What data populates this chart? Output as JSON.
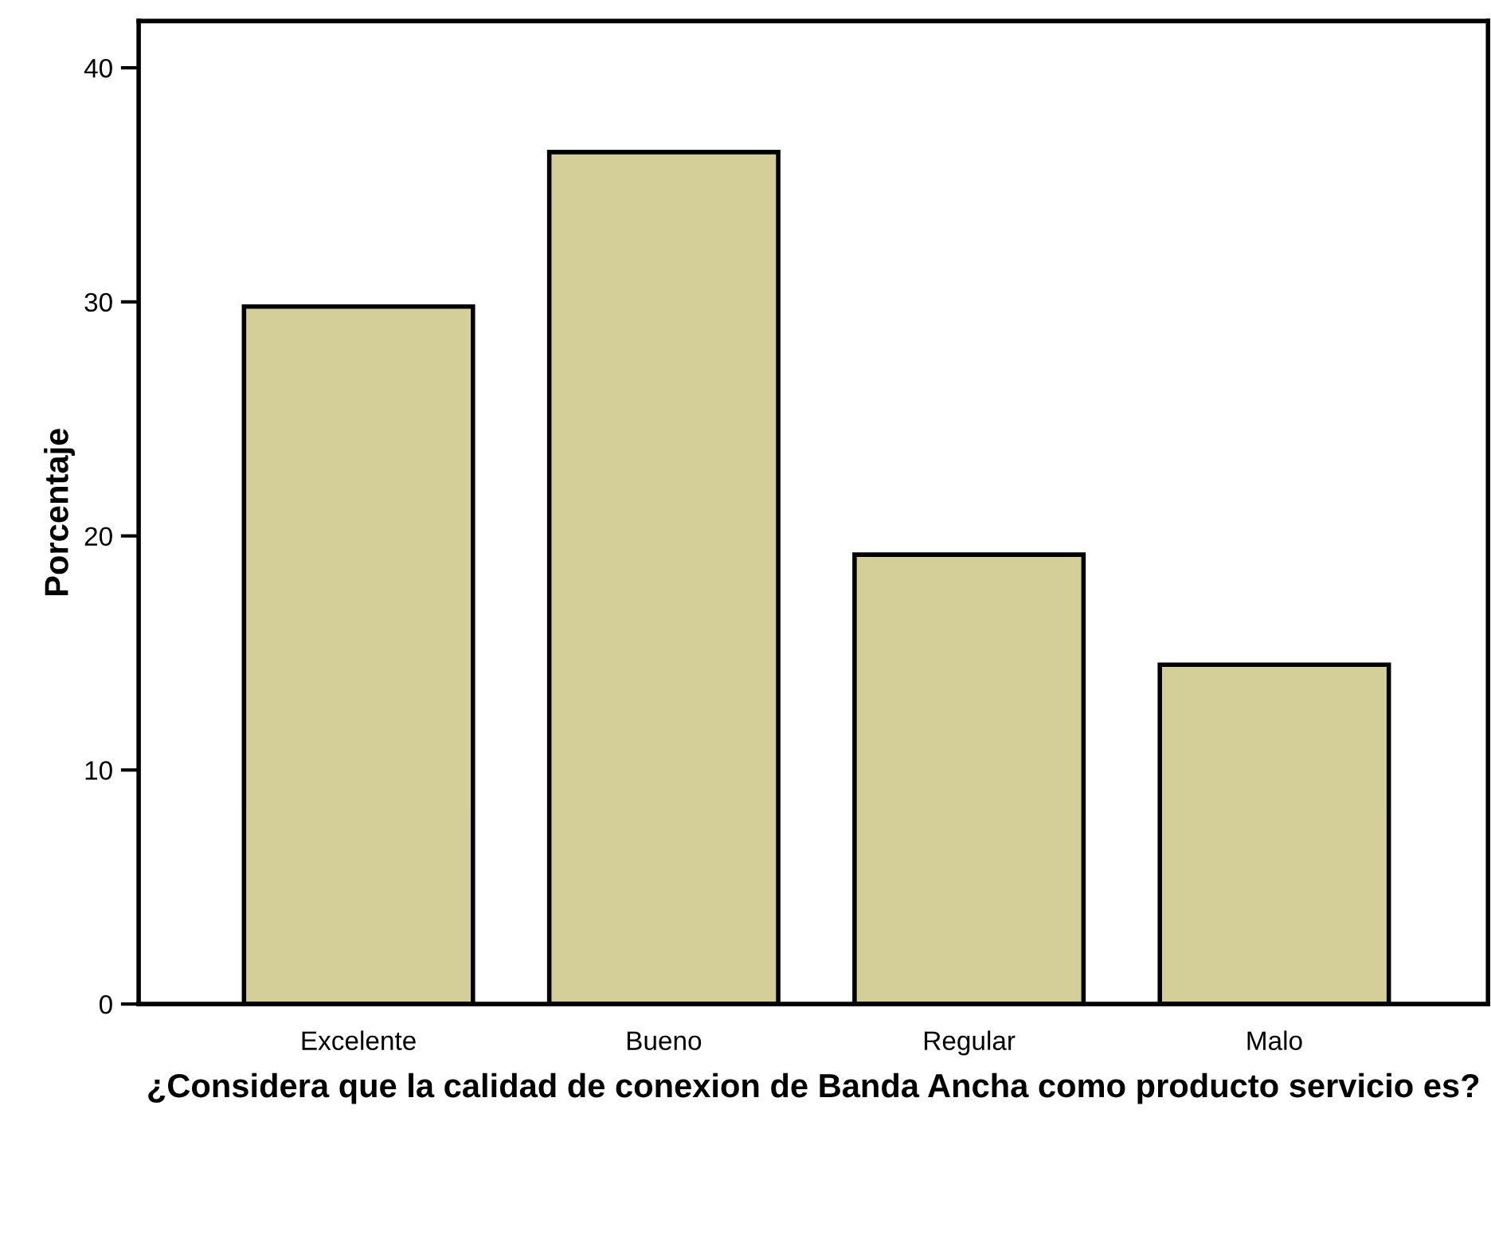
{
  "chart_data": {
    "type": "bar",
    "xlabel": "¿Considera que la calidad de conexion de Banda Ancha como producto servicio es?",
    "ylabel": "Porcentaje",
    "categories": [
      "Excelente",
      "Bueno",
      "Regular",
      "Malo"
    ],
    "values": [
      29.8,
      36.4,
      19.2,
      14.5
    ],
    "color": "#d4cf99",
    "ylim": [
      0,
      42
    ],
    "yticks": [
      0,
      10,
      20,
      30,
      40
    ],
    "grid": false,
    "legend": false
  }
}
